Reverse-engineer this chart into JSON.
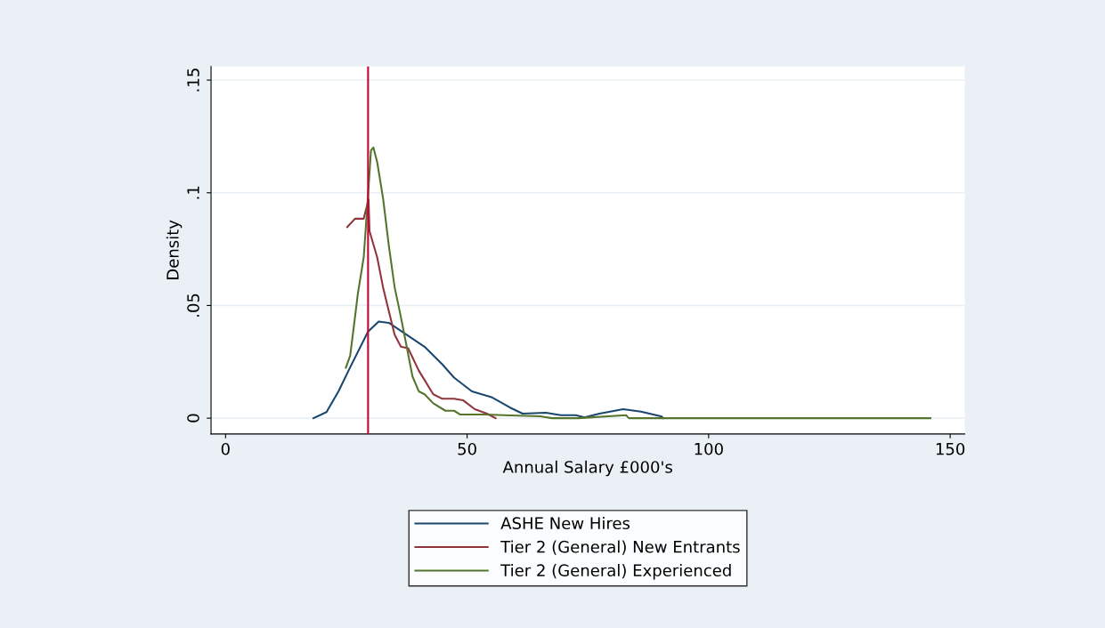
{
  "chart_data": {
    "type": "line",
    "xlabel": "Annual Salary £000's",
    "ylabel": "Density",
    "xlim": [
      -3,
      153
    ],
    "ylim": [
      -0.007,
      0.156
    ],
    "xticks": [
      0,
      50,
      100,
      150
    ],
    "yticks": [
      {
        "value": 0,
        "label": "0"
      },
      {
        "value": 0.05,
        "label": ".05"
      },
      {
        "value": 0.1,
        "label": ".1"
      },
      {
        "value": 0.15,
        "label": ".15"
      }
    ],
    "grid": "y",
    "legend": "bottom",
    "line_style": "solid",
    "marker": "none",
    "ref_lines": [
      {
        "axis": "x",
        "value": 29.5,
        "label": null,
        "color": "#c10534"
      }
    ],
    "series": [
      {
        "name": "ASHE New Hires",
        "color": "#1a476f",
        "x": [
          18.2,
          20.9,
          23.4,
          25.8,
          29.5,
          31.7,
          33.8,
          37.5,
          41.2,
          44.9,
          47.3,
          51,
          55.2,
          58.9,
          61.5,
          66.3,
          69.4,
          72.5,
          74.3,
          77.4,
          82.3,
          86,
          90.3,
          90.6
        ],
        "values": [
          0,
          0.0027,
          0.012,
          0.0226,
          0.0384,
          0.0429,
          0.0423,
          0.037,
          0.0317,
          0.0238,
          0.018,
          0.0119,
          0.0092,
          0.0047,
          0.002,
          0.0024,
          0.0013,
          0.0013,
          0.0003,
          0.002,
          0.004,
          0.0029,
          0.0007,
          0
        ]
      },
      {
        "name": "Tier 2 (General) New Entrants",
        "color": "#90353b",
        "x": [
          25.2,
          26.8,
          28.6,
          29.6,
          29.8,
          31.4,
          32.6,
          33.8,
          35,
          36.3,
          37.8,
          40,
          43,
          44.9,
          47.3,
          49.2,
          51.6,
          54.1,
          55.9
        ],
        "values": [
          0.0848,
          0.0885,
          0.0885,
          0.097,
          0.083,
          0.0713,
          0.0581,
          0.0475,
          0.037,
          0.0317,
          0.031,
          0.0211,
          0.0106,
          0.0086,
          0.0086,
          0.0079,
          0.004,
          0.002,
          0
        ]
      },
      {
        "name": "Tier 2 (General) Experienced",
        "color": "#55752f",
        "x": [
          24.9,
          25.8,
          26.8,
          27.4,
          28.6,
          29.5,
          30.1,
          30.6,
          31.4,
          32.6,
          33.8,
          35,
          36.3,
          37.5,
          38.7,
          40,
          41.2,
          43,
          45.5,
          47.3,
          48.6,
          53.6,
          59,
          65.1,
          67.6,
          73,
          82.9,
          83.5,
          145.9
        ],
        "values": [
          0.0224,
          0.0277,
          0.0449,
          0.0554,
          0.0713,
          0.099,
          0.1188,
          0.1201,
          0.1135,
          0.0977,
          0.0766,
          0.0581,
          0.0449,
          0.0317,
          0.0185,
          0.0119,
          0.0106,
          0.0066,
          0.0033,
          0.0033,
          0.0016,
          0.0016,
          0.0012,
          0.0008,
          0,
          0,
          0.0013,
          0,
          0
        ]
      }
    ]
  }
}
